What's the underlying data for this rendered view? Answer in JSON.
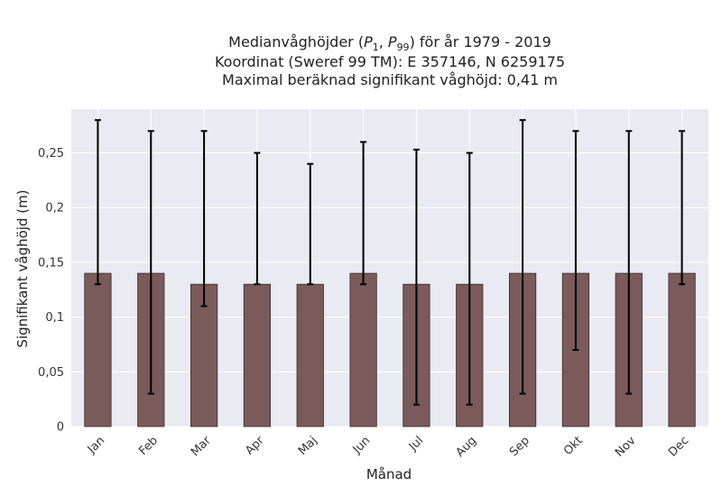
{
  "chart_data": {
    "type": "bar",
    "title_lines": [
      "Medianvåghöjder (P1, P99) för år 1979 - 2019",
      "Koordinat (Sweref 99 TM): E 357146, N 6259175",
      "Maximal beräknad signifikant våghöjd: 0,41 m"
    ],
    "title_math": {
      "prefix": "Medianvåghöjder (",
      "p_first": "P",
      "sub_first": "1",
      "separator": ", ",
      "p_second": "P",
      "sub_second": "99",
      "suffix": ") för år 1979 - 2019"
    },
    "xlabel": "Månad",
    "ylabel": "Signifikant våghöjd (m)",
    "categories": [
      "Jan",
      "Feb",
      "Mar",
      "Apr",
      "Maj",
      "Jun",
      "Jul",
      "Aug",
      "Sep",
      "Okt",
      "Nov",
      "Dec"
    ],
    "values": [
      0.14,
      0.14,
      0.13,
      0.13,
      0.13,
      0.14,
      0.13,
      0.13,
      0.14,
      0.14,
      0.14,
      0.14
    ],
    "p1": [
      0.13,
      0.03,
      0.11,
      0.13,
      0.13,
      0.13,
      0.02,
      0.02,
      0.03,
      0.07,
      0.03,
      0.13
    ],
    "p99": [
      0.28,
      0.27,
      0.27,
      0.25,
      0.24,
      0.26,
      0.253,
      0.25,
      0.28,
      0.27,
      0.27,
      0.27
    ],
    "ylim": [
      0,
      0.29
    ],
    "yticks": [
      0,
      0.05,
      0.1,
      0.15,
      0.2,
      0.25
    ],
    "ytick_labels": [
      "0",
      "0,05",
      "0,1",
      "0,15",
      "0,2",
      "0,25"
    ],
    "grid": true,
    "colors": {
      "bar": "#7a5a5a",
      "bar_edge": "#3a2a2a",
      "errorbar": "#000000",
      "plot_bg": "#eaeaf2",
      "grid": "#ffffff"
    }
  }
}
